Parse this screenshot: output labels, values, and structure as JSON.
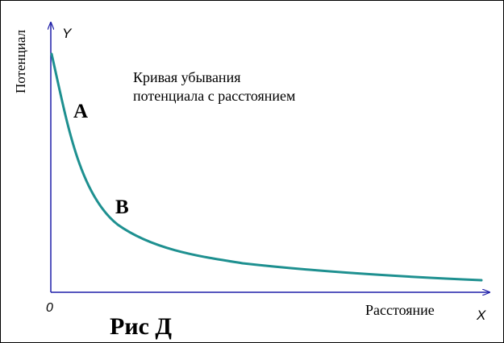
{
  "figure": {
    "y_axis_letter": "Y",
    "x_axis_letter": "X",
    "origin_label": "0",
    "y_axis_title": "Потенциал",
    "x_axis_title": "Расстояние",
    "caption_line1": "Кривая убывания",
    "caption_line2": "потенциала с расстоянием",
    "point_a": "А",
    "point_b": "В",
    "figure_label": "Рис Д"
  },
  "colors": {
    "axis": "#1f1fa8",
    "curve": "#1e9090",
    "text": "#000000"
  }
}
